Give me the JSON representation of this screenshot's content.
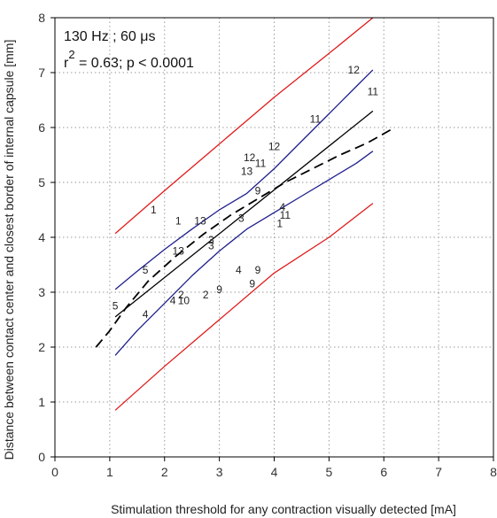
{
  "chart_data": {
    "type": "scatter",
    "title": "",
    "xlabel": "Stimulation threshold for any contraction visually detected [mA]",
    "ylabel": "Distance between contact center and closest border of internal capsule [mm]",
    "xlim": [
      0,
      8
    ],
    "ylim": [
      0,
      8
    ],
    "xticks": [
      0,
      1,
      2,
      3,
      4,
      5,
      6,
      7,
      8
    ],
    "yticks": [
      0,
      1,
      2,
      3,
      4,
      5,
      6,
      7,
      8
    ],
    "grid": true,
    "annotation_line1": "130 Hz ; 60 μs",
    "annotation_r_prefix": "r",
    "annotation_r_sup": "2",
    "annotation_r_rest": " = 0.63;  p < 0.0001",
    "colors": {
      "regression": "#000000",
      "confidence_band": "#1f1f8f",
      "prediction_band": "#e01b1b",
      "dashed_fit": "#000000"
    },
    "points": [
      {
        "x": 1.8,
        "y": 4.5,
        "label": "1"
      },
      {
        "x": 2.25,
        "y": 4.3,
        "label": "1"
      },
      {
        "x": 2.65,
        "y": 4.3,
        "label": "13"
      },
      {
        "x": 2.25,
        "y": 3.75,
        "label": "13"
      },
      {
        "x": 1.65,
        "y": 3.4,
        "label": "5"
      },
      {
        "x": 1.1,
        "y": 2.75,
        "label": "5"
      },
      {
        "x": 1.65,
        "y": 2.6,
        "label": "4"
      },
      {
        "x": 2.85,
        "y": 3.95,
        "label": "3"
      },
      {
        "x": 2.85,
        "y": 3.85,
        "label": "3"
      },
      {
        "x": 3.4,
        "y": 4.35,
        "label": "3"
      },
      {
        "x": 3.5,
        "y": 5.2,
        "label": "13"
      },
      {
        "x": 3.55,
        "y": 5.45,
        "label": "12"
      },
      {
        "x": 3.75,
        "y": 5.35,
        "label": "11"
      },
      {
        "x": 4.0,
        "y": 5.65,
        "label": "12"
      },
      {
        "x": 3.7,
        "y": 4.85,
        "label": "9"
      },
      {
        "x": 4.15,
        "y": 4.55,
        "label": "4"
      },
      {
        "x": 4.2,
        "y": 4.4,
        "label": "11"
      },
      {
        "x": 4.1,
        "y": 4.25,
        "label": "1"
      },
      {
        "x": 3.35,
        "y": 3.4,
        "label": "4"
      },
      {
        "x": 3.7,
        "y": 3.4,
        "label": "9"
      },
      {
        "x": 3.6,
        "y": 3.15,
        "label": "9"
      },
      {
        "x": 3.0,
        "y": 3.05,
        "label": "9"
      },
      {
        "x": 2.75,
        "y": 2.95,
        "label": "2"
      },
      {
        "x": 2.3,
        "y": 2.95,
        "label": "2"
      },
      {
        "x": 2.15,
        "y": 2.85,
        "label": "4"
      },
      {
        "x": 2.35,
        "y": 2.85,
        "label": "10"
      },
      {
        "x": 4.75,
        "y": 6.15,
        "label": "11"
      },
      {
        "x": 5.45,
        "y": 7.05,
        "label": "12"
      },
      {
        "x": 5.8,
        "y": 6.65,
        "label": "11"
      }
    ],
    "series": [
      {
        "kind": "regression",
        "style": "solid",
        "color": "#000000",
        "x": [
          1.1,
          5.8
        ],
        "y": [
          2.55,
          6.3
        ]
      },
      {
        "kind": "confidence_upper",
        "style": "solid",
        "color": "#1f1f8f",
        "x": [
          1.1,
          1.5,
          2.0,
          2.5,
          3.0,
          3.5,
          4.0,
          4.5,
          5.0,
          5.5,
          5.8
        ],
        "y": [
          3.05,
          3.38,
          3.78,
          4.15,
          4.5,
          4.8,
          5.25,
          5.75,
          6.25,
          6.75,
          7.05
        ]
      },
      {
        "kind": "confidence_lower",
        "style": "solid",
        "color": "#1f1f8f",
        "x": [
          1.1,
          1.5,
          2.0,
          2.5,
          3.0,
          3.5,
          4.0,
          4.5,
          5.0,
          5.5,
          5.8
        ],
        "y": [
          1.85,
          2.3,
          2.8,
          3.3,
          3.75,
          4.15,
          4.45,
          4.75,
          5.05,
          5.35,
          5.57
        ]
      },
      {
        "kind": "prediction_upper",
        "style": "solid",
        "color": "#e01b1b",
        "x": [
          1.1,
          2.0,
          3.0,
          4.0,
          5.0,
          5.8
        ],
        "y": [
          4.07,
          4.85,
          5.7,
          6.55,
          7.35,
          8.0
        ]
      },
      {
        "kind": "prediction_lower",
        "style": "solid",
        "color": "#e01b1b",
        "x": [
          1.1,
          2.0,
          3.0,
          4.0,
          5.0,
          5.8
        ],
        "y": [
          0.85,
          1.65,
          2.5,
          3.35,
          4.0,
          4.62
        ]
      },
      {
        "kind": "nonlinear_fit",
        "style": "dashed",
        "color": "#000000",
        "x": [
          0.75,
          1.0,
          1.3,
          1.7,
          2.2,
          2.7,
          3.2,
          3.7,
          4.2,
          4.7,
          5.2,
          5.7,
          6.2
        ],
        "y": [
          2.0,
          2.3,
          2.72,
          3.2,
          3.65,
          4.05,
          4.4,
          4.7,
          5.0,
          5.25,
          5.5,
          5.72,
          6.0
        ]
      }
    ]
  }
}
